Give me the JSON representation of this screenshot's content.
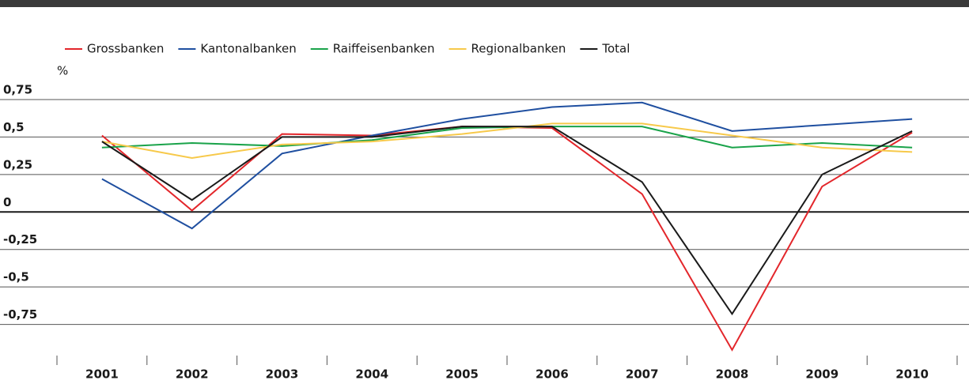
{
  "chart_data": {
    "type": "line",
    "y_label": "%",
    "categories": [
      "2001",
      "2002",
      "2003",
      "2004",
      "2005",
      "2006",
      "2007",
      "2008",
      "2009",
      "2010"
    ],
    "series": [
      {
        "name": "Grossbanken",
        "color": "#e3262b",
        "values": [
          0.51,
          0.01,
          0.52,
          0.51,
          0.57,
          0.56,
          0.12,
          -0.92,
          0.17,
          0.53
        ]
      },
      {
        "name": "Kantonalbanken",
        "color": "#1f4fa0",
        "values": [
          0.22,
          -0.11,
          0.39,
          0.51,
          0.62,
          0.7,
          0.73,
          0.54,
          0.58,
          0.62
        ]
      },
      {
        "name": "Raiffeisenbanken",
        "color": "#1aa34a",
        "values": [
          0.43,
          0.46,
          0.44,
          0.48,
          0.56,
          0.57,
          0.57,
          0.43,
          0.46,
          0.43
        ]
      },
      {
        "name": "Regionalbanken",
        "color": "#f7c94a",
        "values": [
          0.47,
          0.36,
          0.45,
          0.47,
          0.52,
          0.59,
          0.59,
          0.51,
          0.43,
          0.4
        ]
      },
      {
        "name": "Total",
        "color": "#1a1a1a",
        "values": [
          0.47,
          0.08,
          0.5,
          0.5,
          0.57,
          0.57,
          0.2,
          -0.68,
          0.25,
          0.54
        ]
      }
    ],
    "ylim": [
      -1,
      0.75
    ],
    "yticks": [
      {
        "value": 0.75,
        "label": "0,75"
      },
      {
        "value": 0.5,
        "label": "0,5"
      },
      {
        "value": 0.25,
        "label": "0,25"
      },
      0,
      {
        "value": -0.25,
        "label": "-0,25"
      },
      {
        "value": -0.5,
        "label": "-0,5"
      },
      {
        "value": -0.75,
        "label": "-0,75"
      }
    ],
    "grid": true
  }
}
